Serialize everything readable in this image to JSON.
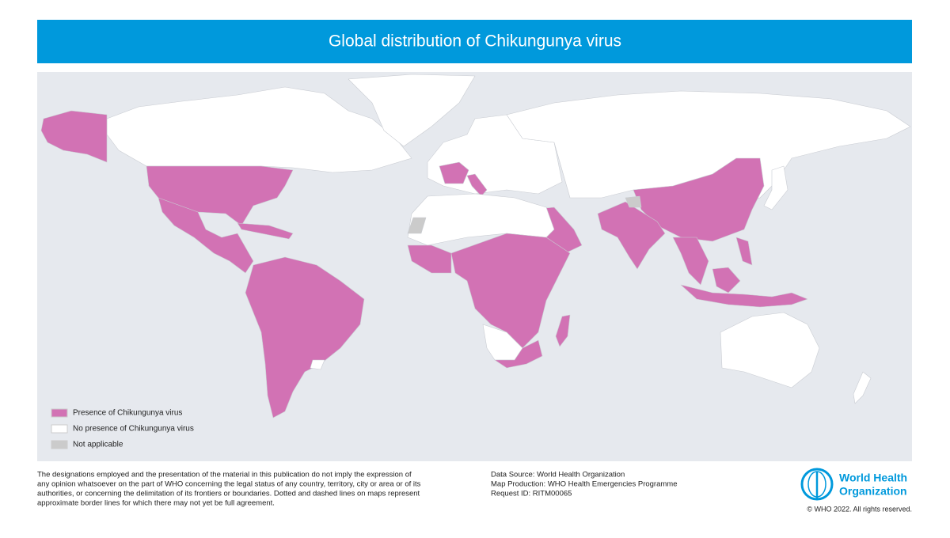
{
  "title": "Global distribution of Chikungunya virus",
  "legend": [
    {
      "label": "Presence of Chikungunya virus",
      "color": "#d272b4"
    },
    {
      "label": "No presence of Chikungunya virus",
      "color": "#ffffff"
    },
    {
      "label": "Not applicable",
      "color": "#cbcbcb"
    }
  ],
  "disclaimer": [
    "The designations employed and the presentation of the material in this publication do not imply the expression of",
    "any opinion whatsoever on the part of WHO concerning the legal status of any country, territory, city or area or of its",
    "authorities, or concerning the delimitation of its frontiers or boundaries. Dotted and dashed lines on maps represent",
    "approximate border lines for which there may not yet be full agreement."
  ],
  "source": [
    "Data Source: World Health Organization",
    "Map Production: WHO Health Emergencies Programme",
    "Request ID: RITM00065"
  ],
  "logo": [
    "World Health",
    "Organization"
  ],
  "copyright": "© WHO 2022. All rights reserved."
}
